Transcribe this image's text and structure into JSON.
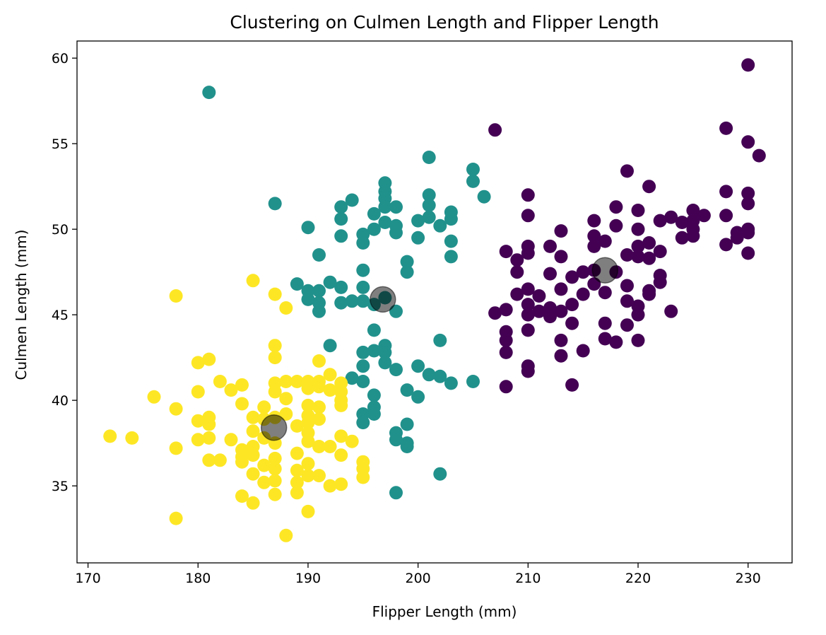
{
  "chart_data": {
    "type": "scatter",
    "title": "Clustering on Culmen Length and Flipper Length",
    "xlabel": "Flipper Length (mm)",
    "ylabel": "Culmen Length (mm)",
    "xlim": [
      169,
      234
    ],
    "ylim": [
      30.5,
      61
    ],
    "xticks": [
      170,
      180,
      190,
      200,
      210,
      220,
      230
    ],
    "yticks": [
      35,
      40,
      45,
      50,
      55,
      60
    ],
    "grid": false,
    "legend": "none",
    "point_colors": {
      "cluster_0": "#440154",
      "cluster_1": "#21918c",
      "cluster_2": "#fde725",
      "centroid": "#000000"
    },
    "series": [
      {
        "points": [
          [
            207,
            55.8
          ],
          [
            210,
            52.0
          ],
          [
            210,
            50.8
          ],
          [
            210,
            49.0
          ],
          [
            210,
            48.6
          ],
          [
            209,
            48.2
          ],
          [
            209,
            47.5
          ],
          [
            209,
            46.2
          ],
          [
            210,
            46.5
          ],
          [
            210,
            45.6
          ],
          [
            210,
            45.0
          ],
          [
            210,
            44.1
          ],
          [
            208,
            48.7
          ],
          [
            208,
            45.3
          ],
          [
            207,
            45.1
          ],
          [
            208,
            44.0
          ],
          [
            208,
            43.5
          ],
          [
            208,
            42.8
          ],
          [
            208,
            40.8
          ],
          [
            210,
            42.0
          ],
          [
            210,
            41.7
          ],
          [
            211,
            46.1
          ],
          [
            211,
            45.2
          ],
          [
            212,
            49.0
          ],
          [
            212,
            47.4
          ],
          [
            212,
            45.4
          ],
          [
            212,
            44.9
          ],
          [
            213,
            49.9
          ],
          [
            213,
            48.4
          ],
          [
            213,
            46.5
          ],
          [
            213,
            45.2
          ],
          [
            213,
            43.5
          ],
          [
            213,
            42.6
          ],
          [
            214,
            47.2
          ],
          [
            214,
            45.6
          ],
          [
            214,
            44.5
          ],
          [
            214,
            40.9
          ],
          [
            215,
            47.5
          ],
          [
            215,
            46.2
          ],
          [
            215,
            42.9
          ],
          [
            216,
            50.5
          ],
          [
            216,
            49.6
          ],
          [
            216,
            49.0
          ],
          [
            216,
            47.6
          ],
          [
            216,
            46.8
          ],
          [
            217,
            49.3
          ],
          [
            217,
            46.3
          ],
          [
            217,
            44.5
          ],
          [
            217,
            43.6
          ],
          [
            218,
            51.3
          ],
          [
            218,
            50.2
          ],
          [
            218,
            47.5
          ],
          [
            218,
            43.4
          ],
          [
            219,
            53.4
          ],
          [
            219,
            48.5
          ],
          [
            219,
            46.7
          ],
          [
            219,
            45.8
          ],
          [
            219,
            44.4
          ],
          [
            220,
            51.1
          ],
          [
            220,
            50.0
          ],
          [
            220,
            49.0
          ],
          [
            220,
            48.4
          ],
          [
            220,
            45.5
          ],
          [
            220,
            45.0
          ],
          [
            220,
            43.5
          ],
          [
            221,
            52.5
          ],
          [
            221,
            49.2
          ],
          [
            221,
            48.3
          ],
          [
            221,
            46.4
          ],
          [
            221,
            46.2
          ],
          [
            222,
            50.5
          ],
          [
            222,
            48.7
          ],
          [
            222,
            47.3
          ],
          [
            222,
            46.9
          ],
          [
            223,
            50.7
          ],
          [
            223,
            45.2
          ],
          [
            224,
            50.4
          ],
          [
            224,
            49.5
          ],
          [
            225,
            51.1
          ],
          [
            225,
            50.5
          ],
          [
            225,
            50.0
          ],
          [
            225,
            49.6
          ],
          [
            226,
            50.8
          ],
          [
            228,
            55.9
          ],
          [
            228,
            52.2
          ],
          [
            228,
            50.8
          ],
          [
            228,
            49.1
          ],
          [
            229,
            49.8
          ],
          [
            229,
            49.5
          ],
          [
            230,
            59.6
          ],
          [
            230,
            55.1
          ],
          [
            230,
            52.1
          ],
          [
            230,
            51.5
          ],
          [
            230,
            50.0
          ],
          [
            230,
            49.8
          ],
          [
            230,
            48.6
          ],
          [
            231,
            54.3
          ]
        ]
      },
      {
        "points": [
          [
            181,
            58.0
          ],
          [
            187,
            51.5
          ],
          [
            190,
            50.1
          ],
          [
            190,
            46.4
          ],
          [
            190,
            45.9
          ],
          [
            189,
            46.8
          ],
          [
            191,
            48.5
          ],
          [
            191,
            46.4
          ],
          [
            191,
            45.7
          ],
          [
            191,
            45.2
          ],
          [
            192,
            46.9
          ],
          [
            192,
            43.2
          ],
          [
            193,
            51.3
          ],
          [
            193,
            50.6
          ],
          [
            193,
            49.6
          ],
          [
            193,
            46.6
          ],
          [
            193,
            45.7
          ],
          [
            194,
            51.7
          ],
          [
            194,
            45.8
          ],
          [
            194,
            41.3
          ],
          [
            195,
            49.7
          ],
          [
            195,
            49.2
          ],
          [
            195,
            47.6
          ],
          [
            195,
            46.6
          ],
          [
            195,
            45.8
          ],
          [
            195,
            42.8
          ],
          [
            195,
            42.0
          ],
          [
            195,
            41.1
          ],
          [
            195,
            39.2
          ],
          [
            195,
            38.7
          ],
          [
            196,
            50.9
          ],
          [
            196,
            50.0
          ],
          [
            196,
            45.6
          ],
          [
            196,
            44.1
          ],
          [
            196,
            42.9
          ],
          [
            196,
            40.3
          ],
          [
            196,
            39.6
          ],
          [
            196,
            39.2
          ],
          [
            197,
            52.7
          ],
          [
            197,
            52.2
          ],
          [
            197,
            51.8
          ],
          [
            197,
            51.3
          ],
          [
            197,
            50.4
          ],
          [
            197,
            46.0
          ],
          [
            197,
            43.2
          ],
          [
            197,
            42.8
          ],
          [
            197,
            42.2
          ],
          [
            198,
            51.3
          ],
          [
            198,
            50.2
          ],
          [
            198,
            49.8
          ],
          [
            198,
            45.2
          ],
          [
            198,
            41.8
          ],
          [
            198,
            38.1
          ],
          [
            198,
            37.7
          ],
          [
            198,
            34.6
          ],
          [
            199,
            48.1
          ],
          [
            199,
            47.5
          ],
          [
            199,
            40.6
          ],
          [
            199,
            38.6
          ],
          [
            199,
            37.5
          ],
          [
            199,
            37.3
          ],
          [
            200,
            50.5
          ],
          [
            200,
            49.5
          ],
          [
            200,
            42.0
          ],
          [
            200,
            40.2
          ],
          [
            201,
            54.2
          ],
          [
            201,
            52.0
          ],
          [
            201,
            51.4
          ],
          [
            201,
            50.7
          ],
          [
            201,
            41.5
          ],
          [
            202,
            50.2
          ],
          [
            202,
            43.5
          ],
          [
            202,
            41.4
          ],
          [
            202,
            35.7
          ],
          [
            203,
            51.0
          ],
          [
            203,
            50.6
          ],
          [
            203,
            49.3
          ],
          [
            203,
            48.4
          ],
          [
            203,
            41.0
          ],
          [
            205,
            53.5
          ],
          [
            205,
            52.8
          ],
          [
            205,
            41.1
          ],
          [
            206,
            51.9
          ]
        ]
      },
      {
        "points": [
          [
            172,
            37.9
          ],
          [
            174,
            37.8
          ],
          [
            176,
            40.2
          ],
          [
            178,
            46.1
          ],
          [
            178,
            39.5
          ],
          [
            178,
            37.2
          ],
          [
            178,
            33.1
          ],
          [
            180,
            42.2
          ],
          [
            180,
            40.5
          ],
          [
            180,
            38.8
          ],
          [
            180,
            37.7
          ],
          [
            181,
            42.4
          ],
          [
            181,
            39.0
          ],
          [
            181,
            38.6
          ],
          [
            181,
            37.8
          ],
          [
            181,
            36.5
          ],
          [
            182,
            41.1
          ],
          [
            182,
            36.5
          ],
          [
            183,
            40.6
          ],
          [
            183,
            37.7
          ],
          [
            184,
            40.9
          ],
          [
            184,
            39.8
          ],
          [
            184,
            37.1
          ],
          [
            184,
            36.7
          ],
          [
            184,
            36.4
          ],
          [
            184,
            34.4
          ],
          [
            185,
            47.0
          ],
          [
            185,
            39.0
          ],
          [
            185,
            38.2
          ],
          [
            185,
            37.3
          ],
          [
            185,
            36.8
          ],
          [
            185,
            35.7
          ],
          [
            185,
            34.0
          ],
          [
            186,
            39.6
          ],
          [
            186,
            38.9
          ],
          [
            186,
            37.8
          ],
          [
            186,
            36.2
          ],
          [
            186,
            35.2
          ],
          [
            187,
            46.2
          ],
          [
            187,
            43.2
          ],
          [
            187,
            42.5
          ],
          [
            187,
            41.0
          ],
          [
            187,
            40.5
          ],
          [
            187,
            39.0
          ],
          [
            187,
            37.5
          ],
          [
            187,
            36.6
          ],
          [
            187,
            36.0
          ],
          [
            187,
            35.3
          ],
          [
            187,
            34.5
          ],
          [
            188,
            45.4
          ],
          [
            188,
            41.1
          ],
          [
            188,
            40.1
          ],
          [
            188,
            39.2
          ],
          [
            189,
            41.1
          ],
          [
            189,
            38.5
          ],
          [
            189,
            36.9
          ],
          [
            189,
            35.9
          ],
          [
            189,
            35.2
          ],
          [
            189,
            34.6
          ],
          [
            190,
            41.1
          ],
          [
            190,
            40.7
          ],
          [
            190,
            39.7
          ],
          [
            190,
            39.1
          ],
          [
            190,
            38.7
          ],
          [
            190,
            38.1
          ],
          [
            190,
            37.6
          ],
          [
            190,
            36.3
          ],
          [
            190,
            35.6
          ],
          [
            190,
            33.5
          ],
          [
            191,
            42.3
          ],
          [
            191,
            41.1
          ],
          [
            191,
            40.8
          ],
          [
            191,
            39.6
          ],
          [
            191,
            38.9
          ],
          [
            191,
            37.3
          ],
          [
            191,
            35.6
          ],
          [
            192,
            41.5
          ],
          [
            192,
            40.6
          ],
          [
            192,
            37.3
          ],
          [
            192,
            35.0
          ],
          [
            193,
            41.0
          ],
          [
            193,
            40.5
          ],
          [
            193,
            40.0
          ],
          [
            193,
            39.7
          ],
          [
            193,
            37.9
          ],
          [
            193,
            36.8
          ],
          [
            193,
            35.1
          ],
          [
            194,
            37.6
          ],
          [
            195,
            36.4
          ],
          [
            195,
            36.0
          ],
          [
            195,
            35.5
          ],
          [
            188,
            32.1
          ]
        ]
      },
      {
        "points": [
          [
            217.0,
            47.6
          ],
          [
            196.8,
            45.9
          ],
          [
            186.9,
            38.4
          ]
        ]
      }
    ]
  }
}
